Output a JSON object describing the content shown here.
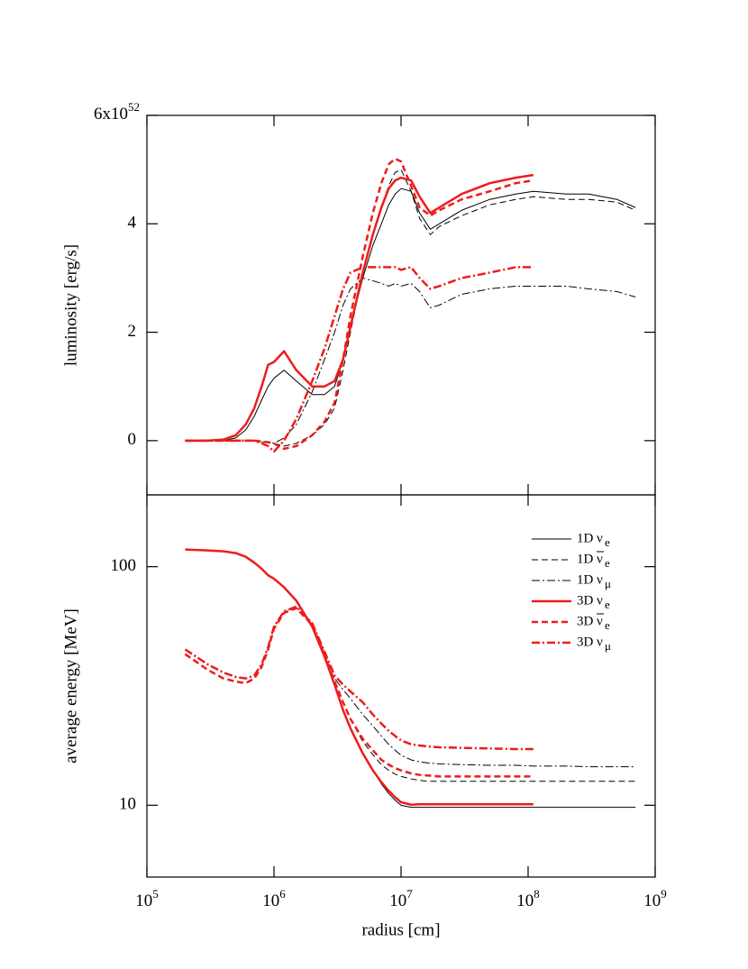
{
  "chart_data": [
    {
      "type": "line",
      "ylabel": "luminosity [erg/s]",
      "xscale": "log",
      "xlim": [
        100000,
        1000000000
      ],
      "xticks": [
        100000,
        1000000,
        10000000,
        100000000,
        1000000000
      ],
      "ylim": [
        -1,
        6
      ],
      "yticks": [
        {
          "value": 6,
          "label": "6x10",
          "exponent": "52"
        },
        4,
        2,
        0
      ],
      "x": [
        200000,
        300000,
        400000,
        500000,
        600000,
        700000,
        800000,
        900000,
        1000000,
        1200000,
        1500000,
        2000000,
        2500000,
        3000000,
        3500000,
        4000000,
        5000000,
        6000000,
        7000000,
        8000000,
        9000000,
        10000000,
        12000000,
        14000000,
        17000000,
        20000000,
        30000000,
        50000000,
        80000000,
        110000000,
        200000000,
        300000000,
        500000000,
        700000000
      ],
      "series": [
        {
          "color": "#000000",
          "style": "solid",
          "linewidth": 1,
          "values": [
            0,
            0,
            0,
            0.05,
            0.2,
            0.45,
            0.75,
            1.0,
            1.15,
            1.3,
            1.1,
            0.85,
            0.85,
            1.0,
            1.5,
            2.1,
            3.0,
            3.6,
            4.0,
            4.35,
            4.55,
            4.65,
            4.6,
            4.2,
            3.9,
            4.0,
            4.25,
            4.45,
            4.55,
            4.6,
            4.55,
            4.55,
            4.45,
            4.3
          ]
        },
        {
          "color": "#000000",
          "style": "dashed",
          "linewidth": 1,
          "values": [
            0,
            0,
            0,
            0,
            0,
            0,
            0,
            -0.02,
            -0.05,
            -0.1,
            -0.05,
            0.1,
            0.3,
            0.6,
            1.3,
            2.0,
            3.1,
            3.8,
            4.3,
            4.7,
            4.95,
            5.0,
            4.6,
            4.1,
            3.8,
            3.95,
            4.15,
            4.35,
            4.45,
            4.5,
            4.45,
            4.45,
            4.4,
            4.25
          ]
        },
        {
          "color": "#000000",
          "style": "dashdot",
          "linewidth": 1,
          "values": [
            0,
            0,
            0,
            0,
            0,
            0,
            -0.02,
            -0.03,
            -0.05,
            0.05,
            0.3,
            0.9,
            1.5,
            2.0,
            2.5,
            2.8,
            3.0,
            2.95,
            2.9,
            2.85,
            2.9,
            2.85,
            2.9,
            2.75,
            2.45,
            2.5,
            2.7,
            2.8,
            2.85,
            2.85,
            2.85,
            2.8,
            2.75,
            2.65
          ]
        },
        {
          "color": "#ee1c1c",
          "style": "solid",
          "linewidth": 2.5,
          "values": [
            0,
            0,
            0.02,
            0.1,
            0.3,
            0.6,
            1.0,
            1.4,
            1.45,
            1.65,
            1.3,
            1.0,
            1.0,
            1.1,
            1.5,
            2.1,
            3.1,
            3.8,
            4.3,
            4.65,
            4.8,
            4.85,
            4.8,
            4.5,
            4.2,
            4.3,
            4.55,
            4.75,
            4.85,
            4.9,
            null,
            null,
            null,
            null
          ]
        },
        {
          "color": "#ee1c1c",
          "style": "dashed",
          "linewidth": 2.5,
          "values": [
            0,
            0,
            0,
            0,
            0,
            0,
            -0.02,
            -0.03,
            -0.05,
            -0.15,
            -0.1,
            0.1,
            0.35,
            0.7,
            1.5,
            2.3,
            3.4,
            4.2,
            4.75,
            5.1,
            5.2,
            5.15,
            4.7,
            4.3,
            4.15,
            4.25,
            4.45,
            4.6,
            4.75,
            4.8,
            null,
            null,
            null,
            null
          ]
        },
        {
          "color": "#ee1c1c",
          "style": "dashdot",
          "linewidth": 2.5,
          "values": [
            0,
            0,
            0,
            0,
            0,
            0,
            -0.05,
            -0.1,
            -0.2,
            0.0,
            0.4,
            1.1,
            1.7,
            2.3,
            2.8,
            3.1,
            3.2,
            3.2,
            3.2,
            3.2,
            3.2,
            3.15,
            3.2,
            3.0,
            2.8,
            2.85,
            3.0,
            3.1,
            3.2,
            3.2,
            null,
            null,
            null,
            null
          ]
        }
      ]
    },
    {
      "type": "line",
      "ylabel": "average energy [MeV]",
      "xlabel": "radius [cm]",
      "xscale": "log",
      "yscale": "log",
      "legend": "upper right",
      "xlim": [
        100000,
        1000000000
      ],
      "xticks": [
        {
          "value": 100000,
          "label": "10",
          "exponent": "5"
        },
        {
          "value": 1000000,
          "label": "10",
          "exponent": "6"
        },
        {
          "value": 10000000,
          "label": "10",
          "exponent": "7"
        },
        {
          "value": 100000000,
          "label": "10",
          "exponent": "8"
        },
        {
          "value": 1000000000,
          "label": "10",
          "exponent": "9"
        }
      ],
      "ylim": [
        5,
        200
      ],
      "yticks": [
        10,
        100
      ],
      "x": [
        200000,
        300000,
        400000,
        500000,
        600000,
        700000,
        800000,
        900000,
        1000000,
        1200000,
        1500000,
        2000000,
        2500000,
        3000000,
        3500000,
        4000000,
        5000000,
        6000000,
        7000000,
        8000000,
        9000000,
        10000000,
        12000000,
        14000000,
        17000000,
        20000000,
        30000000,
        50000000,
        80000000,
        110000000,
        200000000,
        300000000,
        500000000,
        700000000
      ],
      "series": [
        {
          "name": "1D",
          "particle": "ν",
          "flavor": "e",
          "anti": false,
          "color": "#000000",
          "style": "solid",
          "linewidth": 1,
          "values": [
            118,
            117,
            116,
            114,
            110,
            104,
            98,
            92,
            89,
            82,
            72,
            56,
            42,
            32,
            25,
            21,
            16.5,
            14,
            12.3,
            11.2,
            10.5,
            10,
            9.8,
            9.8,
            9.8,
            9.8,
            9.8,
            9.8,
            9.8,
            9.8,
            9.8,
            9.8,
            9.8,
            9.8
          ]
        },
        {
          "name": "1D",
          "particle": "ν",
          "flavor": "e",
          "anti": true,
          "color": "#000000",
          "style": "dashed",
          "linewidth": 1,
          "values": [
            43,
            37,
            34,
            33,
            32.5,
            34,
            38,
            45,
            55,
            64,
            67,
            57,
            43,
            33,
            27,
            23,
            18.5,
            16.3,
            14.8,
            14,
            13.5,
            13.2,
            12.9,
            12.7,
            12.6,
            12.6,
            12.6,
            12.6,
            12.6,
            12.6,
            12.6,
            12.6,
            12.6,
            12.6
          ]
        },
        {
          "name": "1D",
          "particle": "ν",
          "flavor": "μ",
          "anti": false,
          "color": "#000000",
          "style": "dashdot",
          "linewidth": 1,
          "values": [
            45,
            39,
            36,
            34.5,
            34,
            35,
            39,
            46,
            56,
            65,
            68,
            58,
            44,
            34,
            30.5,
            28,
            24,
            21.5,
            19.5,
            18,
            17,
            16.2,
            15.5,
            15.2,
            15,
            14.9,
            14.8,
            14.7,
            14.7,
            14.6,
            14.6,
            14.5,
            14.5,
            14.5
          ]
        },
        {
          "name": "3D",
          "particle": "ν",
          "flavor": "e",
          "anti": false,
          "color": "#ee1c1c",
          "style": "solid",
          "linewidth": 2.5,
          "values": [
            118,
            117,
            116,
            114,
            110,
            104,
            98,
            92,
            89,
            82,
            72,
            56,
            42,
            32,
            25,
            21,
            16.5,
            14,
            12.5,
            11.5,
            10.8,
            10.3,
            10.05,
            10.1,
            10.1,
            10.1,
            10.1,
            10.1,
            10.1,
            10.1,
            null,
            null,
            null,
            null
          ]
        },
        {
          "name": "3D",
          "particle": "ν",
          "flavor": "e",
          "anti": true,
          "color": "#ee1c1c",
          "style": "dashed",
          "linewidth": 2.5,
          "values": [
            43,
            37,
            34,
            33,
            32.5,
            34,
            38,
            45,
            55,
            64,
            67,
            57,
            43,
            33,
            27,
            23,
            19,
            17,
            15.5,
            14.8,
            14.3,
            14,
            13.6,
            13.4,
            13.3,
            13.2,
            13.2,
            13.2,
            13.2,
            13.2,
            null,
            null,
            null,
            null
          ]
        },
        {
          "name": "3D",
          "particle": "ν",
          "flavor": "μ",
          "anti": false,
          "color": "#ee1c1c",
          "style": "dashdot",
          "linewidth": 2.5,
          "values": [
            45,
            39,
            36,
            34.5,
            34,
            35,
            39,
            46,
            56,
            65,
            68,
            58,
            44,
            35,
            32,
            30,
            27,
            24,
            22,
            20.5,
            19.5,
            18.7,
            18,
            17.8,
            17.6,
            17.5,
            17.4,
            17.3,
            17.2,
            17.2,
            null,
            null,
            null,
            null
          ]
        }
      ]
    }
  ]
}
